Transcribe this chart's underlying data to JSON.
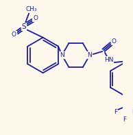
{
  "bg_color": "#fdf8ec",
  "bond_color": "#1a1aaa",
  "text_color": "#1a1aaa",
  "line_width": 1.3,
  "font_size": 6.5,
  "figsize": [
    1.94,
    1.97
  ],
  "dpi": 100,
  "xlim": [
    0,
    194
  ],
  "ylim": [
    0,
    197
  ]
}
